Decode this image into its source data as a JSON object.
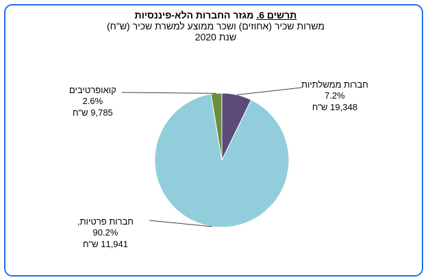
{
  "chart_data": {
    "type": "pie",
    "title_prefix": "תרשים 6.",
    "title": "מגזר החברות הלא-פיננסיות",
    "subtitle": "משרות שכיר (אחוזים)   ושכר ממוצע למשרת שכיר (ש\"ח)",
    "year_label": "שנת  2020",
    "slices": [
      {
        "name": "חברות ממשלתיות",
        "percent_label": "7.2%",
        "percent": 7.2,
        "wage_label": "19,348 ש\"ח",
        "wage": 19348,
        "color": "#5b4a7a"
      },
      {
        "name": "חברות פרטיות,",
        "percent_label": "90.2%",
        "percent": 90.2,
        "wage_label": "11,941 ש\"ח",
        "wage": 11941,
        "color": "#92cddc"
      },
      {
        "name": "קואופרטיבים",
        "percent_label": "2.6%",
        "percent": 2.6,
        "wage_label": "9,785 ש\"ח",
        "wage": 9785,
        "color": "#6b8e3b"
      }
    ],
    "legend": "none"
  }
}
